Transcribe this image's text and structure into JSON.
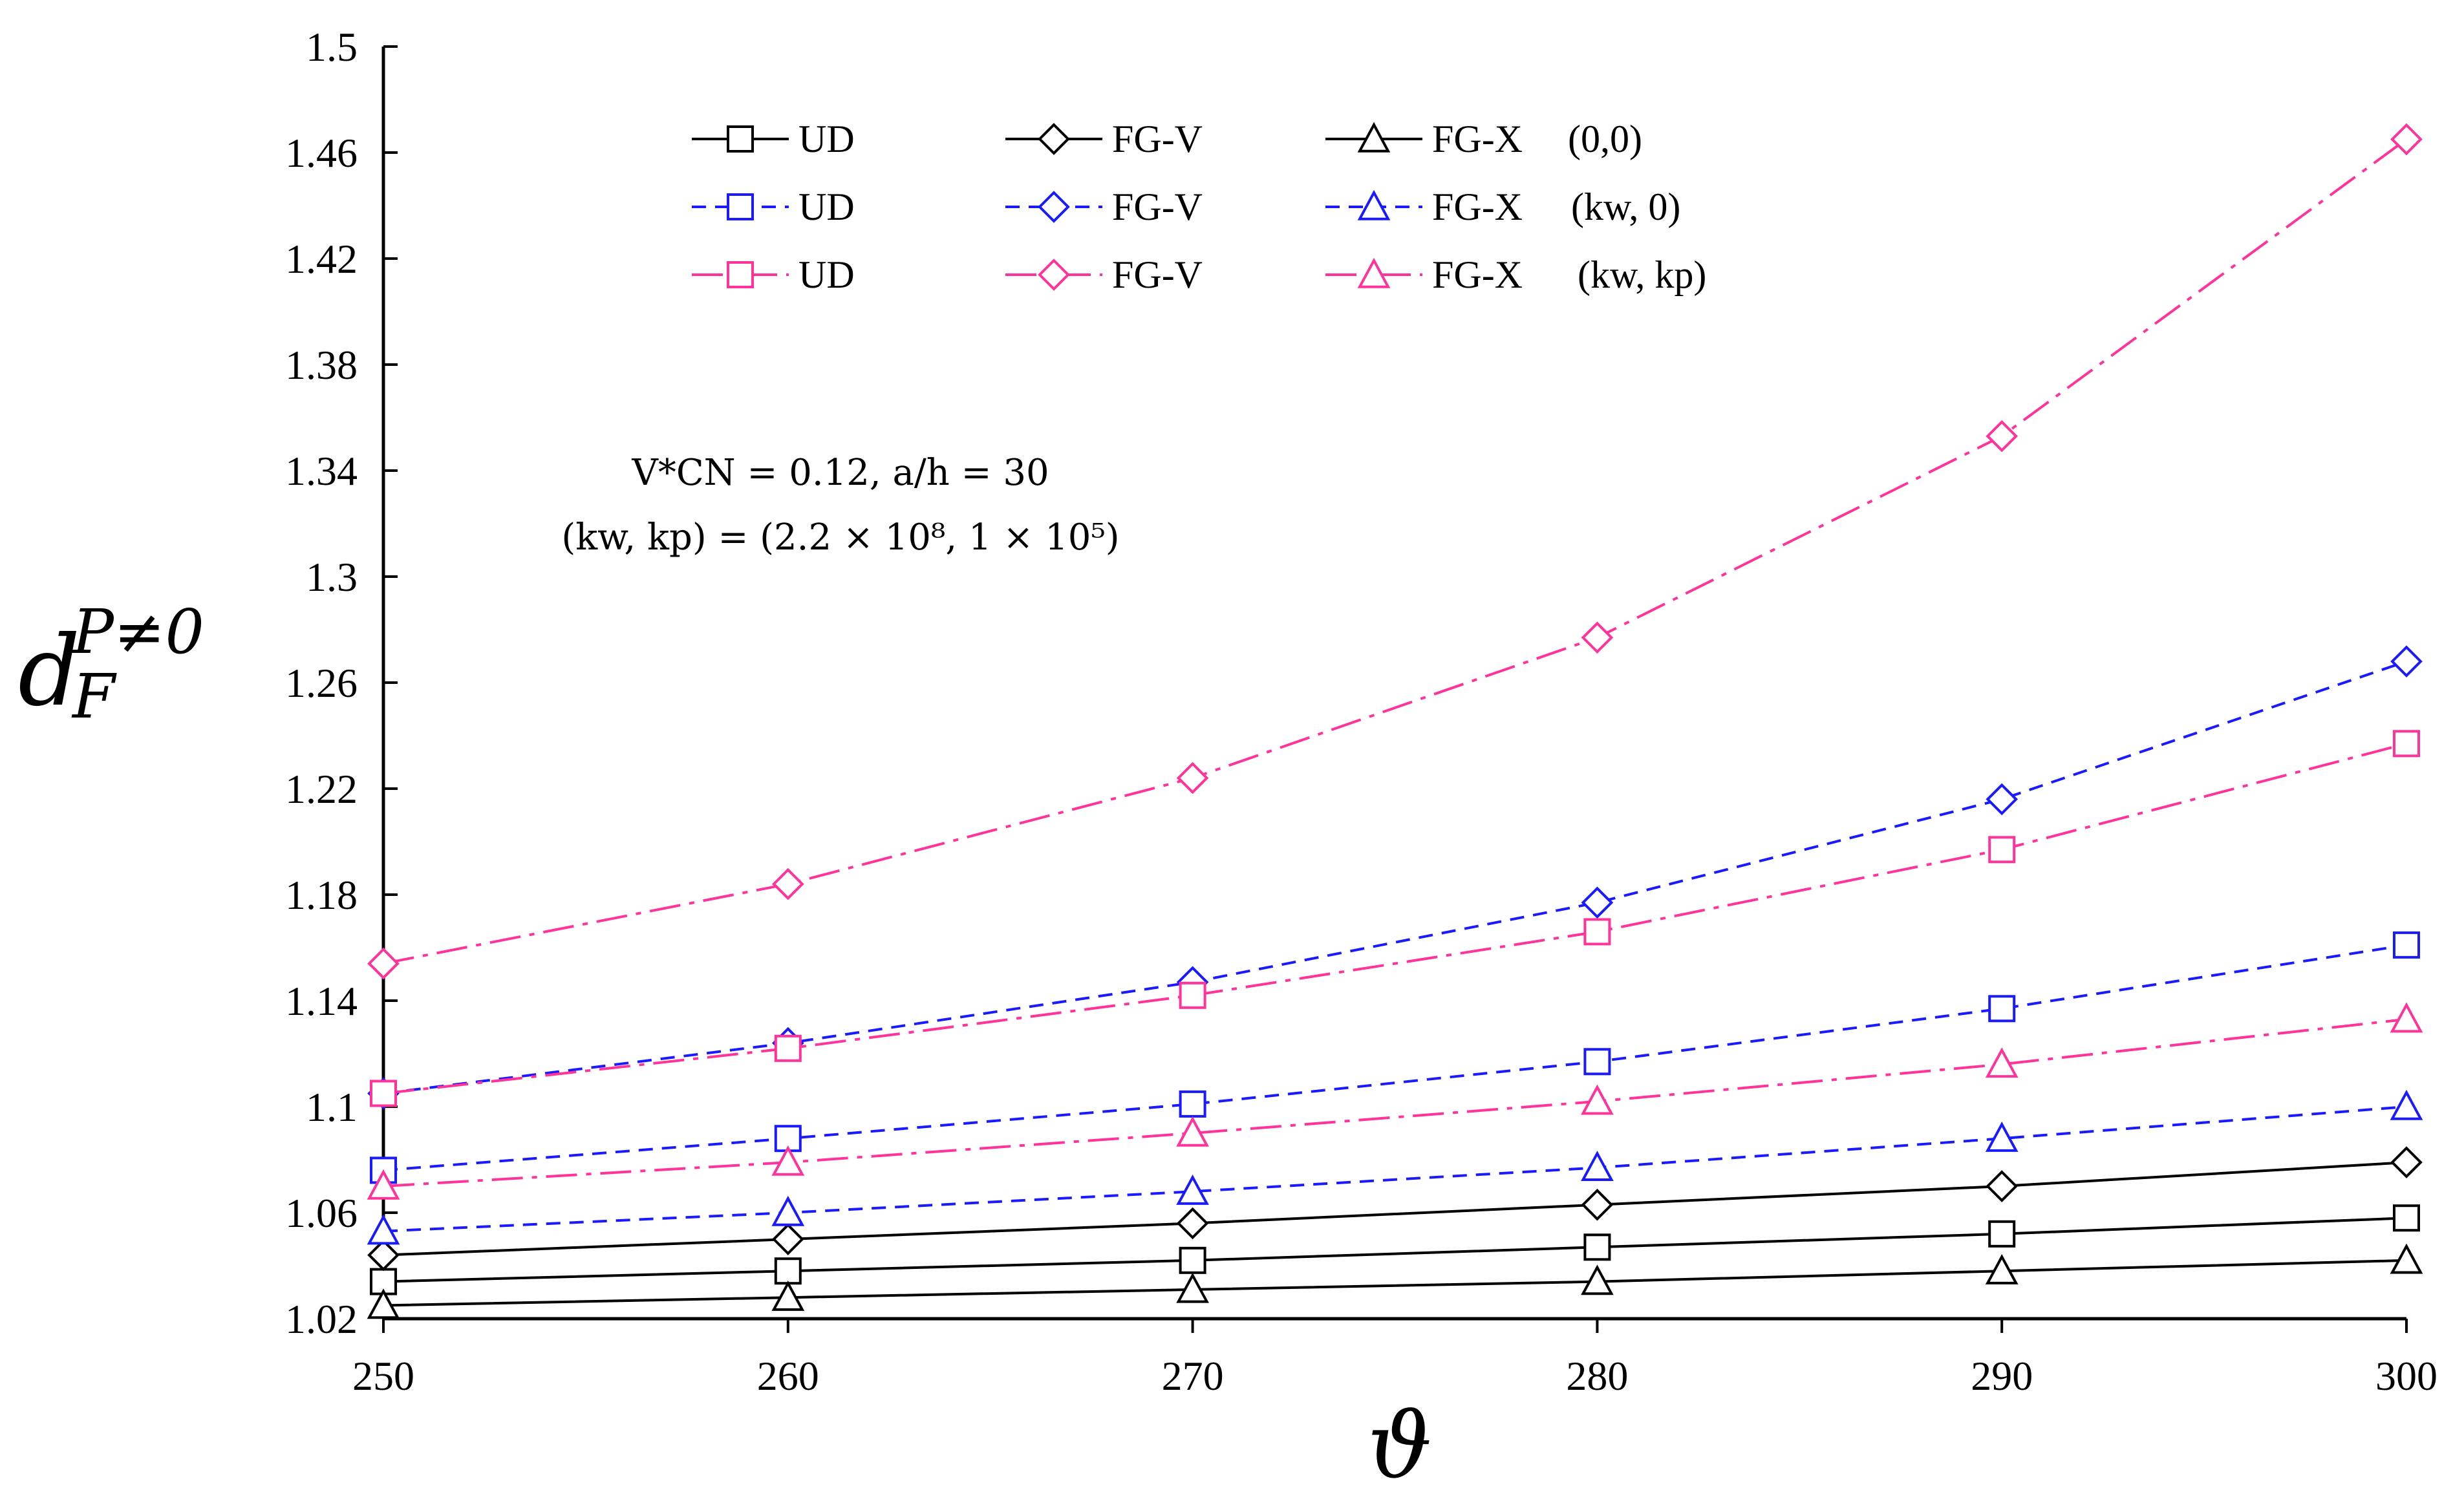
{
  "chart_data": {
    "type": "line",
    "x": [
      250,
      260,
      270,
      280,
      290,
      300
    ],
    "xlim": [
      250,
      300
    ],
    "ylim": [
      1.02,
      1.5
    ],
    "xticks": [
      "250",
      "260",
      "270",
      "280",
      "290",
      "300"
    ],
    "yticks": [
      "1.02",
      "1.06",
      "1.1",
      "1.14",
      "1.18",
      "1.22",
      "1.26",
      "1.3",
      "1.34",
      "1.38",
      "1.42",
      "1.46",
      "1.5"
    ],
    "xlabel": "ϑ",
    "ylabel": "d",
    "ylabel_sub": "F",
    "ylabel_sup": "P≠0",
    "annotation_line1": "V*CN = 0.12, a/h = 30",
    "annotation_line2": "(kw, kp) = (2.2 × 10⁸, 1 × 10⁵)",
    "legend_groups": [
      "(0,0)",
      "(kw, 0)",
      "(kw, kp)"
    ],
    "colors": {
      "group0": "#000000",
      "group1": "#1a1aff",
      "group2": "#ff3399"
    },
    "series": [
      {
        "name": "UD",
        "group": 0,
        "marker": "square",
        "values": [
          1.034,
          1.038,
          1.042,
          1.047,
          1.052,
          1.058
        ]
      },
      {
        "name": "FG-V",
        "group": 0,
        "marker": "diamond",
        "values": [
          1.044,
          1.05,
          1.056,
          1.063,
          1.07,
          1.079
        ]
      },
      {
        "name": "FG-X",
        "group": 0,
        "marker": "triangle",
        "values": [
          1.025,
          1.028,
          1.031,
          1.034,
          1.038,
          1.042
        ]
      },
      {
        "name": "UD",
        "group": 1,
        "marker": "square",
        "values": [
          1.076,
          1.088,
          1.101,
          1.117,
          1.137,
          1.161
        ]
      },
      {
        "name": "FG-V",
        "group": 1,
        "marker": "diamond",
        "values": [
          1.105,
          1.124,
          1.147,
          1.177,
          1.216,
          1.268
        ]
      },
      {
        "name": "FG-X",
        "group": 1,
        "marker": "triangle",
        "values": [
          1.053,
          1.06,
          1.068,
          1.077,
          1.088,
          1.1
        ]
      },
      {
        "name": "UD",
        "group": 2,
        "marker": "square",
        "values": [
          1.105,
          1.122,
          1.142,
          1.166,
          1.197,
          1.237
        ]
      },
      {
        "name": "FG-V",
        "group": 2,
        "marker": "diamond",
        "values": [
          1.154,
          1.184,
          1.224,
          1.277,
          1.353,
          1.465
        ]
      },
      {
        "name": "FG-X",
        "group": 2,
        "marker": "triangle",
        "values": [
          1.07,
          1.079,
          1.09,
          1.102,
          1.116,
          1.133
        ]
      }
    ]
  }
}
